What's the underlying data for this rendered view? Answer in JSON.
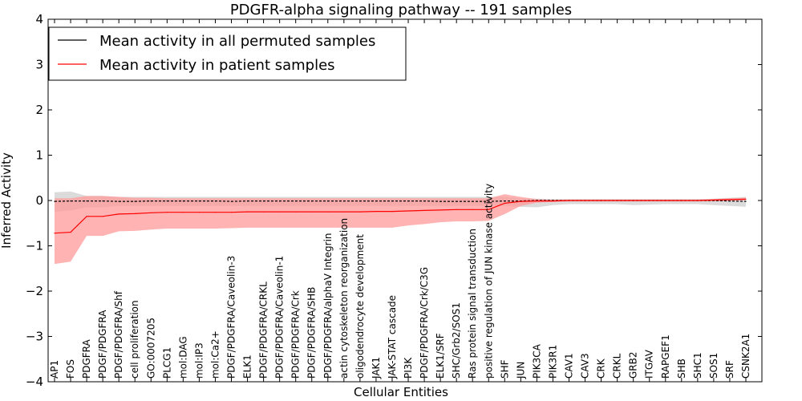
{
  "chart_data": {
    "type": "line",
    "title": "PDGFR-alpha signaling pathway -- 191 samples",
    "xlabel": "Cellular Entities",
    "ylabel": "Inferred Activity",
    "ylim": [
      -4,
      4
    ],
    "yticks": [
      4,
      3,
      2,
      1,
      0,
      -1,
      -2,
      -3,
      -4
    ],
    "ytick_labels": [
      "4",
      "3",
      "2",
      "1",
      "0",
      "−1",
      "−2",
      "−3",
      "−4"
    ],
    "legend_position": "top-left",
    "categories": [
      "AP1",
      "FOS",
      "PDGFRA",
      "PDGF/PDGFRA",
      "PDGF/PDGFRA/Shf",
      "cell proliferation",
      "GO:0007205",
      "PLCG1",
      "mol:DAG",
      "mol:IP3",
      "mol:Ca2+",
      "PDGF/PDGFRA/Caveolin-3",
      "ELK1",
      "PDGF/PDGFRA/CRKL",
      "PDGF/PDGFRA/Caveolin-1",
      "PDGF/PDGFRA/Crk",
      "PDGF/PDGFRA/SHB",
      "PDGF/PDGFRA/alphaV Integrin",
      "actin cytoskeleton reorganization",
      "oligodendrocyte development",
      "JAK1",
      "JAK-STAT cascade",
      "PI3K",
      "PDGF/PDGFRA/Crk/C3G",
      "ELK1/SRF",
      "SHC/Grb2/SOS1",
      "Ras protein signal transduction",
      "positive regulation of JUN kinase activity",
      "SHF",
      "JUN",
      "PIK3CA",
      "PIK3R1",
      "CAV1",
      "CAV3",
      "CRK",
      "CRKL",
      "GRB2",
      "ITGAV",
      "RAPGEF1",
      "SHB",
      "SHC1",
      "SOS1",
      "SRF",
      "CSNK2A1"
    ],
    "series": [
      {
        "name": "Mean activity in all permuted samples",
        "color": "#000000",
        "band_color": "#b0b0b0",
        "values": [
          -0.02,
          -0.01,
          -0.01,
          -0.01,
          -0.02,
          -0.02,
          -0.01,
          -0.01,
          -0.01,
          -0.01,
          -0.01,
          -0.02,
          -0.01,
          -0.01,
          -0.01,
          -0.01,
          -0.01,
          -0.01,
          -0.01,
          -0.01,
          -0.01,
          -0.01,
          -0.01,
          -0.01,
          -0.02,
          -0.02,
          -0.02,
          -0.02,
          -0.01,
          -0.01,
          0.0,
          0.0,
          0.0,
          0.0,
          0.0,
          0.0,
          0.0,
          0.0,
          0.0,
          0.0,
          0.0,
          0.0,
          -0.01,
          -0.02
        ],
        "upper": [
          0.18,
          0.2,
          0.1,
          0.1,
          0.08,
          0.08,
          0.08,
          0.08,
          0.08,
          0.08,
          0.08,
          0.08,
          0.08,
          0.08,
          0.08,
          0.08,
          0.08,
          0.08,
          0.08,
          0.08,
          0.08,
          0.08,
          0.08,
          0.08,
          0.08,
          0.08,
          0.08,
          0.08,
          0.08,
          0.05,
          0.04,
          0.03,
          0.03,
          0.03,
          0.03,
          0.03,
          0.03,
          0.03,
          0.03,
          0.03,
          0.03,
          0.04,
          0.06,
          0.08
        ],
        "lower": [
          -0.25,
          -0.22,
          -0.15,
          -0.15,
          -0.12,
          -0.12,
          -0.12,
          -0.12,
          -0.12,
          -0.12,
          -0.12,
          -0.12,
          -0.12,
          -0.12,
          -0.12,
          -0.12,
          -0.12,
          -0.12,
          -0.12,
          -0.12,
          -0.12,
          -0.12,
          -0.12,
          -0.12,
          -0.12,
          -0.12,
          -0.12,
          -0.12,
          -0.12,
          -0.14,
          -0.15,
          -0.1,
          -0.08,
          -0.08,
          -0.08,
          -0.08,
          -0.1,
          -0.09,
          -0.08,
          -0.08,
          -0.08,
          -0.1,
          -0.12,
          -0.14
        ]
      },
      {
        "name": "Mean activity in patient samples",
        "color": "#ff0000",
        "band_color": "#ff9999",
        "values": [
          -0.72,
          -0.7,
          -0.35,
          -0.35,
          -0.3,
          -0.29,
          -0.27,
          -0.26,
          -0.26,
          -0.26,
          -0.26,
          -0.26,
          -0.25,
          -0.25,
          -0.25,
          -0.25,
          -0.25,
          -0.25,
          -0.25,
          -0.25,
          -0.24,
          -0.24,
          -0.23,
          -0.22,
          -0.21,
          -0.2,
          -0.2,
          -0.2,
          -0.06,
          -0.02,
          -0.01,
          -0.01,
          0.0,
          0.0,
          0.0,
          0.0,
          0.0,
          0.0,
          0.0,
          0.0,
          0.0,
          0.01,
          0.02,
          0.03
        ],
        "upper": [
          0.05,
          0.05,
          0.1,
          0.1,
          0.08,
          0.06,
          0.06,
          0.05,
          0.05,
          0.05,
          0.05,
          0.05,
          0.05,
          0.05,
          0.05,
          0.05,
          0.05,
          0.05,
          0.05,
          0.05,
          0.05,
          0.05,
          0.05,
          0.05,
          0.05,
          0.05,
          0.05,
          0.05,
          0.14,
          0.08,
          0.03,
          0.02,
          0.02,
          0.02,
          0.02,
          0.02,
          0.02,
          0.02,
          0.02,
          0.02,
          0.02,
          0.03,
          0.05,
          0.06
        ],
        "lower": [
          -1.4,
          -1.35,
          -0.78,
          -0.78,
          -0.68,
          -0.67,
          -0.64,
          -0.62,
          -0.62,
          -0.62,
          -0.62,
          -0.61,
          -0.6,
          -0.6,
          -0.6,
          -0.6,
          -0.6,
          -0.6,
          -0.6,
          -0.6,
          -0.6,
          -0.6,
          -0.55,
          -0.52,
          -0.48,
          -0.46,
          -0.46,
          -0.45,
          -0.3,
          -0.12,
          -0.05,
          -0.03,
          -0.02,
          -0.02,
          -0.02,
          -0.02,
          -0.02,
          -0.02,
          -0.02,
          -0.02,
          -0.02,
          -0.02,
          -0.01,
          0.0
        ]
      }
    ]
  }
}
